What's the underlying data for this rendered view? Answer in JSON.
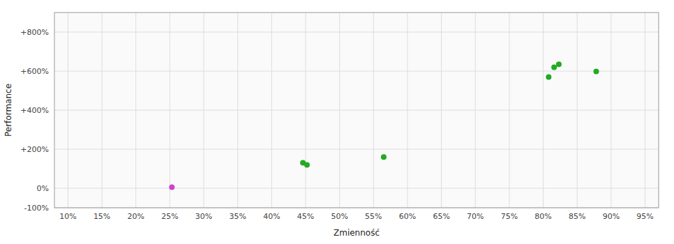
{
  "chart_data": {
    "type": "scatter",
    "xlabel": "Zmienność",
    "ylabel": "Performance",
    "x": [
      0.253,
      0.446,
      0.452,
      0.565,
      0.808,
      0.816,
      0.823,
      0.878
    ],
    "values": [
      0.05,
      1.3,
      1.2,
      1.6,
      5.7,
      6.2,
      6.35,
      5.98
    ],
    "colors": [
      "#cc44cc",
      "#22aa22",
      "#22aa22",
      "#22aa22",
      "#22aa22",
      "#22aa22",
      "#22aa22",
      "#22aa22"
    ],
    "xlim": [
      0.08,
      0.97
    ],
    "ylim": [
      -1.0,
      9.0
    ],
    "xticks": [
      {
        "value": 0.1,
        "label": "10%"
      },
      {
        "value": 0.15,
        "label": "15%"
      },
      {
        "value": 0.2,
        "label": "20%"
      },
      {
        "value": 0.25,
        "label": "25%"
      },
      {
        "value": 0.3,
        "label": "30%"
      },
      {
        "value": 0.35,
        "label": "35%"
      },
      {
        "value": 0.4,
        "label": "40%"
      },
      {
        "value": 0.45,
        "label": "45%"
      },
      {
        "value": 0.5,
        "label": "50%"
      },
      {
        "value": 0.55,
        "label": "55%"
      },
      {
        "value": 0.6,
        "label": "60%"
      },
      {
        "value": 0.65,
        "label": "65%"
      },
      {
        "value": 0.7,
        "label": "70%"
      },
      {
        "value": 0.75,
        "label": "75%"
      },
      {
        "value": 0.8,
        "label": "80%"
      },
      {
        "value": 0.85,
        "label": "85%"
      },
      {
        "value": 0.9,
        "label": "90%"
      },
      {
        "value": 0.95,
        "label": "95%"
      }
    ],
    "yticks": [
      {
        "value": -1.0,
        "label": "-100%"
      },
      {
        "value": 0.0,
        "label": "0%"
      },
      {
        "value": 2.0,
        "label": "+200%"
      },
      {
        "value": 4.0,
        "label": "+400%"
      },
      {
        "value": 6.0,
        "label": "+600%"
      },
      {
        "value": 8.0,
        "label": "+800%"
      }
    ],
    "grid": true
  }
}
